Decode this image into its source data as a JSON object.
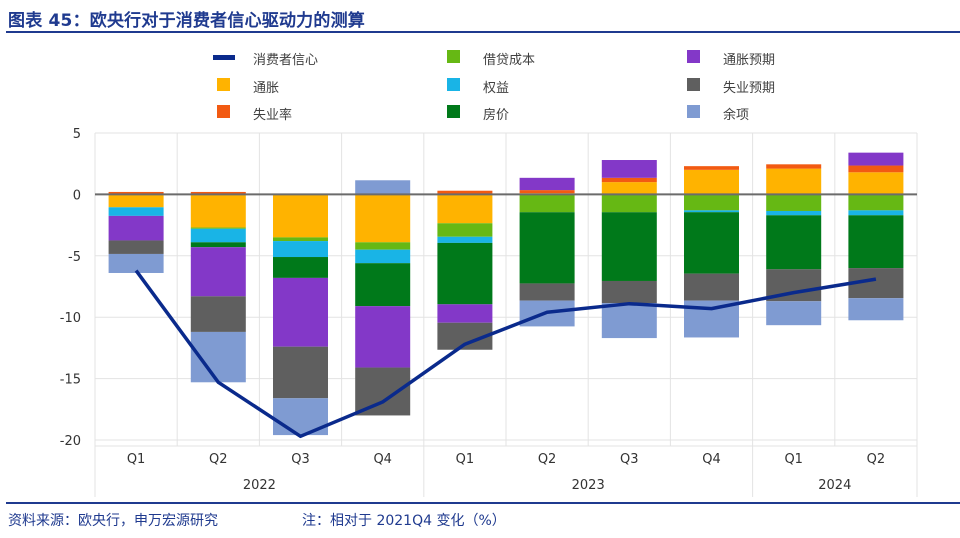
{
  "header": {
    "title": "图表 45：欧央行对于消费者信心驱动力的测算"
  },
  "footer": {
    "source": "资料来源：欧央行，申万宏源研究",
    "note": "注：相对于 2021Q4 变化（%）"
  },
  "chart_data": {
    "type": "bar",
    "stacked": true,
    "title": "欧央行对于消费者信心驱动力的测算",
    "xlabel": "",
    "ylabel": "",
    "ylim": [
      -20,
      5
    ],
    "yticks": [
      5,
      0,
      -5,
      -10,
      -15,
      -20
    ],
    "grid": true,
    "legend_position": "top",
    "categories": [
      "Q1",
      "Q2",
      "Q3",
      "Q4",
      "Q1",
      "Q2",
      "Q3",
      "Q4",
      "Q1",
      "Q2"
    ],
    "year_groups": [
      {
        "label": "2022",
        "span": 4
      },
      {
        "label": "2023",
        "span": 4
      },
      {
        "label": "2024",
        "span": 2
      }
    ],
    "series": [
      {
        "name": "通胀",
        "color": "#FFB300",
        "values": [
          -1.05,
          -2.7,
          -3.5,
          -3.9,
          -2.35,
          0.1,
          1.0,
          2.0,
          2.1,
          1.8
        ]
      },
      {
        "name": "失业率",
        "color": "#F25A12",
        "values": [
          0.2,
          0.2,
          0.0,
          0.0,
          0.3,
          0.25,
          0.35,
          0.3,
          0.35,
          0.55
        ]
      },
      {
        "name": "借贷成本",
        "color": "#66B814",
        "values": [
          0.0,
          -0.1,
          -0.3,
          -0.6,
          -1.1,
          -1.45,
          -1.45,
          -1.3,
          -1.35,
          -1.3
        ]
      },
      {
        "name": "权益",
        "color": "#19B4E6",
        "values": [
          -0.7,
          -1.1,
          -1.3,
          -1.1,
          -0.5,
          0.0,
          0.0,
          -0.15,
          -0.35,
          -0.4
        ]
      },
      {
        "name": "房价",
        "color": "#00791A",
        "values": [
          0.0,
          -0.4,
          -1.7,
          -3.5,
          -5.0,
          -5.8,
          -5.6,
          -5.0,
          -4.4,
          -4.3
        ]
      },
      {
        "name": "通胀预期",
        "color": "#8338C8",
        "values": [
          -2.0,
          -4.0,
          -5.6,
          -5.0,
          -1.5,
          1.0,
          1.45,
          0.0,
          0.0,
          1.05
        ]
      },
      {
        "name": "失业预期",
        "color": "#5F5F5F",
        "values": [
          -1.1,
          -2.9,
          -4.2,
          -3.9,
          -2.2,
          -1.4,
          -1.8,
          -2.2,
          -2.6,
          -2.45
        ]
      },
      {
        "name": "余项",
        "color": "#7F9BD2",
        "values": [
          -1.55,
          -4.1,
          -3.0,
          1.15,
          0.0,
          -2.1,
          -2.85,
          -3.0,
          -1.95,
          -1.8
        ]
      }
    ],
    "line": {
      "name": "消费者信心",
      "color": "#0A2A8C",
      "values": [
        -6.2,
        -15.3,
        -19.7,
        -16.9,
        -12.2,
        -9.6,
        -8.9,
        -9.3,
        -8.0,
        -6.9
      ]
    },
    "legend": [
      {
        "name": "消费者信心",
        "type": "line",
        "color": "#0A2A8C"
      },
      {
        "name": "借贷成本",
        "type": "box",
        "color": "#66B814"
      },
      {
        "name": "通胀预期",
        "type": "box",
        "color": "#8338C8"
      },
      {
        "name": "通胀",
        "type": "box",
        "color": "#FFB300"
      },
      {
        "name": "权益",
        "type": "box",
        "color": "#19B4E6"
      },
      {
        "name": "失业预期",
        "type": "box",
        "color": "#5F5F5F"
      },
      {
        "name": "失业率",
        "type": "box",
        "color": "#F25A12"
      },
      {
        "name": "房价",
        "type": "box",
        "color": "#00791A"
      },
      {
        "name": "余项",
        "type": "box",
        "color": "#7F9BD2"
      }
    ]
  }
}
